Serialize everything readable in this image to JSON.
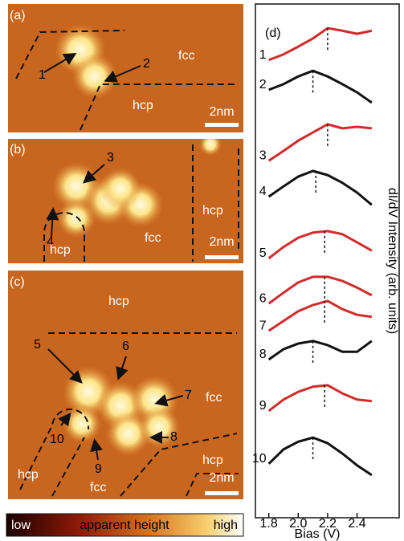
{
  "panels": [
    {
      "label": "(a)",
      "annotations": [
        "1",
        "2"
      ],
      "regions": [
        "fcc",
        "hcp"
      ],
      "scale_bar": "2nm"
    },
    {
      "label": "(b)",
      "annotations": [
        "3",
        "4"
      ],
      "regions": [
        "fcc",
        "hcp",
        "hcp"
      ],
      "scale_bar": "2nm"
    },
    {
      "label": "(c)",
      "annotations": [
        "5",
        "6",
        "7",
        "8",
        "9",
        "10"
      ],
      "regions": [
        "hcp",
        "fcc",
        "hcp",
        "fcc",
        "hcp"
      ],
      "scale_bar": "2nm"
    }
  ],
  "colorbar": {
    "low": "low",
    "title": "apparent height",
    "high": "high"
  },
  "chart_data": {
    "type": "line",
    "title": "(d)",
    "x_label": "Bias (V)",
    "y_label": "dI/dV Intensity (arb. units)",
    "x": [
      1.8,
      1.9,
      2.0,
      2.1,
      2.2,
      2.3,
      2.4,
      2.5
    ],
    "xlim": [
      1.72,
      2.55
    ],
    "ylim": [
      0,
      100
    ],
    "xticks": [
      {
        "value": 1.8,
        "label": "1.8"
      },
      {
        "value": 2.0,
        "label": "2.0"
      },
      {
        "value": 2.2,
        "label": "2.2"
      },
      {
        "value": 2.4,
        "label": "2.4"
      }
    ],
    "series": [
      {
        "name": "1",
        "color": "#d42a2a",
        "values": [
          89.1,
          90.2,
          91.7,
          93.3,
          95.3,
          94.8,
          94.2,
          94.8
        ],
        "peak": 2.2
      },
      {
        "name": "2",
        "color": "#111111",
        "values": [
          83.3,
          84.4,
          85.9,
          87.0,
          85.9,
          84.4,
          82.8,
          80.8
        ],
        "peak": 2.1
      },
      {
        "name": "3",
        "color": "#d42a2a",
        "values": [
          69.5,
          71.4,
          73.4,
          75.0,
          76.6,
          75.8,
          76.1,
          75.8
        ],
        "peak": 2.2
      },
      {
        "name": "4",
        "color": "#111111",
        "values": [
          62.5,
          64.5,
          66.4,
          67.5,
          66.7,
          65.2,
          63.3,
          60.9
        ],
        "peak": 2.12
      },
      {
        "name": "5",
        "color": "#d42a2a",
        "values": [
          50.5,
          52.7,
          54.5,
          55.5,
          55.8,
          55.2,
          53.6,
          52.0
        ],
        "peak": 2.18
      },
      {
        "name": "6",
        "color": "#d42a2a",
        "values": [
          41.7,
          43.8,
          45.8,
          46.9,
          46.9,
          46.1,
          44.8,
          43.3
        ],
        "peak": 2.18
      },
      {
        "name": "7",
        "color": "#d42a2a",
        "values": [
          36.4,
          38.3,
          40.2,
          41.4,
          42.2,
          40.6,
          39.5,
          39.1
        ],
        "peak": 2.18
      },
      {
        "name": "8",
        "color": "#111111",
        "values": [
          30.8,
          32.8,
          33.9,
          34.4,
          33.6,
          32.3,
          32.3,
          34.4
        ],
        "peak": 2.1
      },
      {
        "name": "9",
        "color": "#d42a2a",
        "values": [
          20.8,
          23.0,
          24.5,
          25.5,
          25.8,
          24.2,
          23.0,
          22.7
        ],
        "peak": 2.18
      },
      {
        "name": "10",
        "color": "#111111",
        "values": [
          10.5,
          13.3,
          14.8,
          15.6,
          14.5,
          12.5,
          10.2,
          8.3
        ],
        "peak": 2.1
      }
    ]
  }
}
